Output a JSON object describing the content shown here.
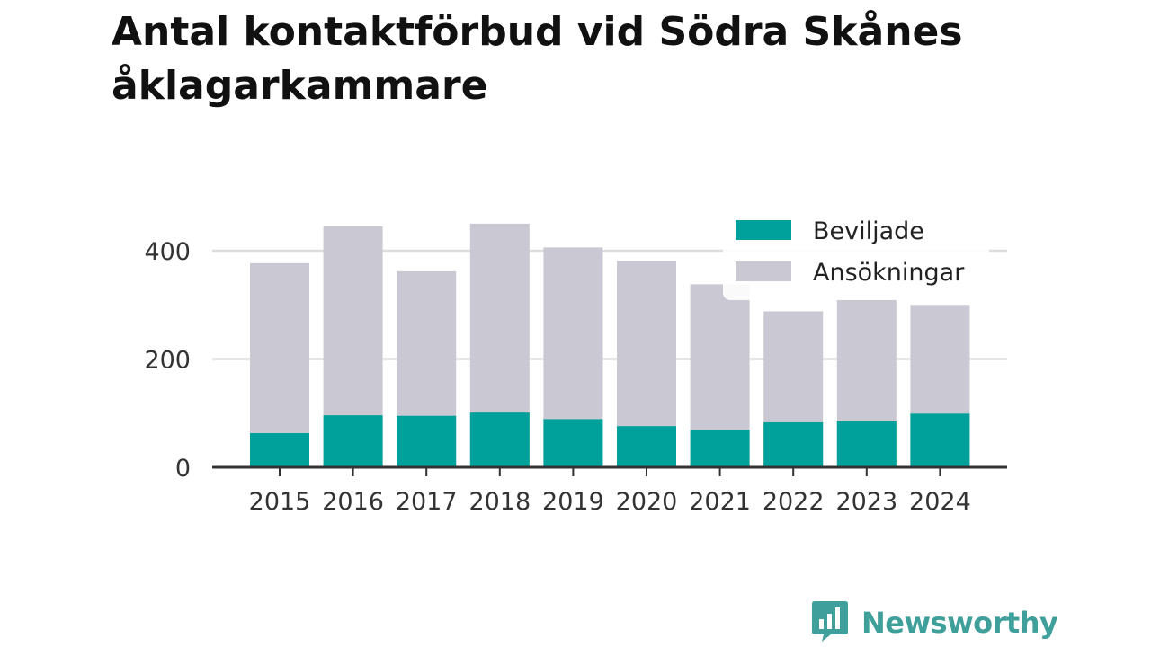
{
  "title": "Antal kontaktförbud vid Södra Skånes åklagarkammare",
  "brand": {
    "name": "Newsworthy",
    "logo_icon": "bar-chart-speech-bubble-icon"
  },
  "colors": {
    "granted": "#00a19a",
    "applications": "#c9c8d3",
    "grid": "#dddddd",
    "axis": "#333333",
    "brand": "#3f9f9a"
  },
  "chart_data": {
    "type": "bar",
    "stacked": false,
    "overlay": true,
    "categories": [
      "2015",
      "2016",
      "2017",
      "2018",
      "2019",
      "2020",
      "2021",
      "2022",
      "2023",
      "2024"
    ],
    "series": [
      {
        "name": "Beviljade",
        "color": "#00a19a",
        "values": [
          63,
          96,
          95,
          101,
          89,
          76,
          69,
          83,
          85,
          99
        ]
      },
      {
        "name": "Ansökningar",
        "color": "#c9c8d3",
        "values": [
          377,
          445,
          362,
          450,
          406,
          381,
          338,
          288,
          310,
          300
        ]
      }
    ],
    "yticks": [
      0,
      200,
      400
    ],
    "ylim": [
      0,
      450
    ],
    "grid": true,
    "legend": "top-right"
  }
}
